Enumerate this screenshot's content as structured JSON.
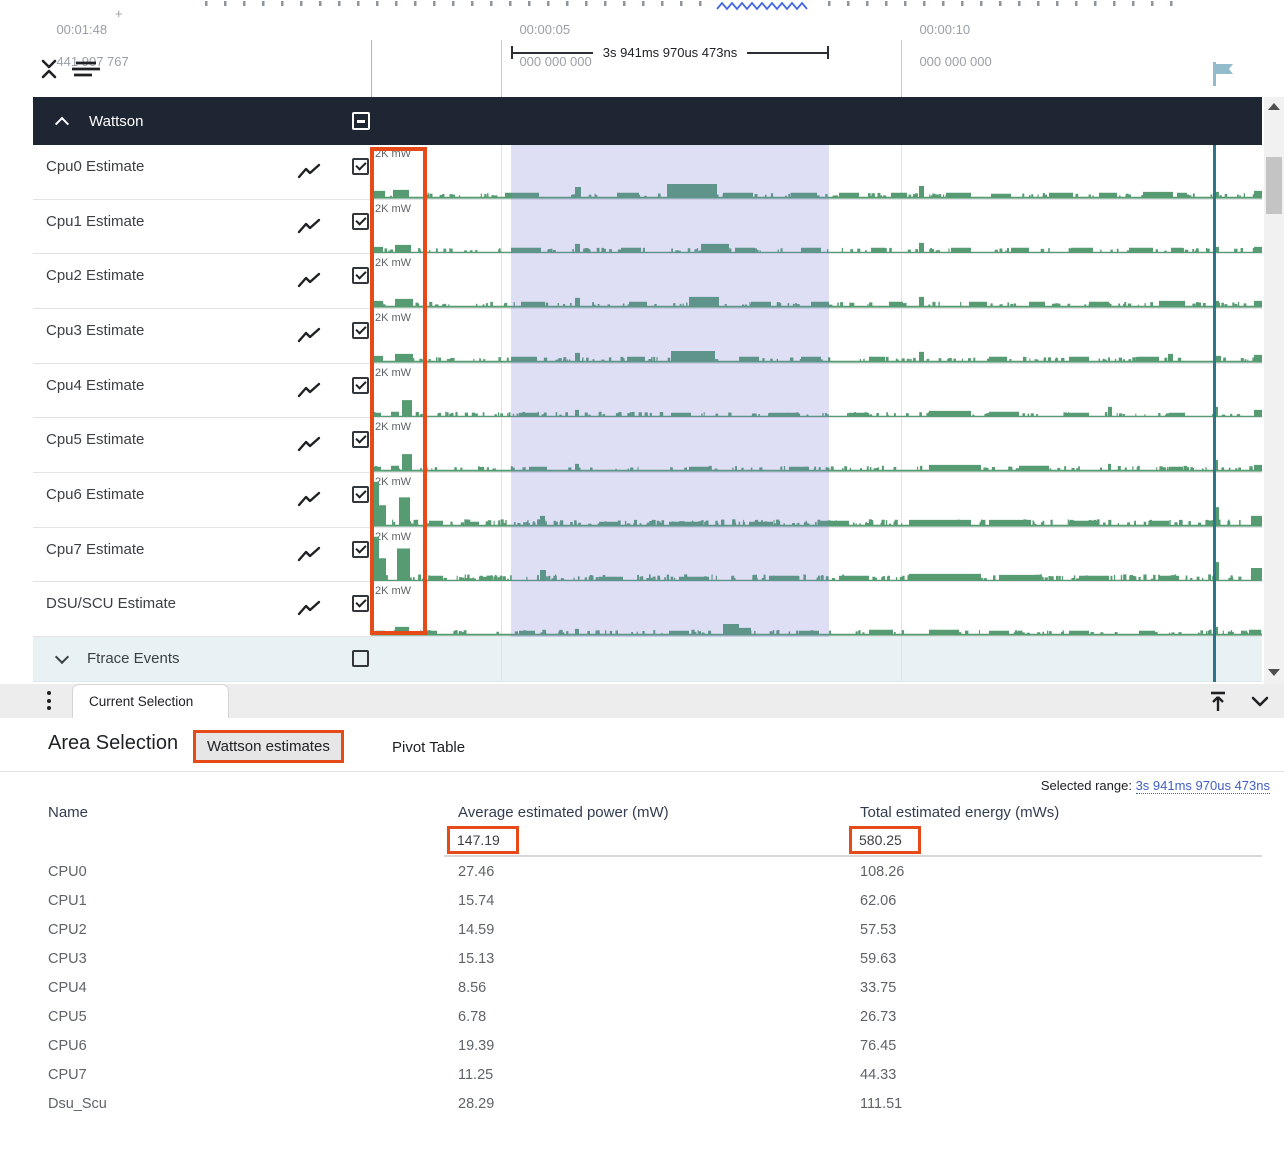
{
  "colors": {
    "accent_orange": "#e64a19",
    "chart_green": "#569b72",
    "cursor_teal": "#2b7689",
    "selection_lavender": "rgba(122,129,214,0.25)",
    "group_header_bg": "#1e2633",
    "link_blue": "#4260c4",
    "ftrace_row_bg": "#e8f2f4"
  },
  "ruler": {
    "start_time": {
      "line1": "00:01:48",
      "plus": "+",
      "line2": "441 907 767"
    },
    "tick_5s": {
      "line1": "00:00:05",
      "line2": "000 000 000"
    },
    "tick_10s": {
      "line1": "00:00:10",
      "line2": "000 000 000"
    },
    "selection_duration": "3s 941ms 970us 473ns"
  },
  "timeline": {
    "group": {
      "label": "Wattson",
      "checkbox": "indeterminate"
    },
    "unit_label": "2K mW",
    "tracks": [
      {
        "label": "Cpu0 Estimate",
        "checked": true,
        "bumps": [
          [
            0,
            14,
            6
          ],
          [
            22,
            16,
            7
          ],
          [
            134,
            34,
            4
          ],
          [
            204,
            6,
            10
          ],
          [
            246,
            22,
            4
          ],
          [
            296,
            50,
            13
          ],
          [
            352,
            30,
            4
          ],
          [
            420,
            26,
            4
          ],
          [
            468,
            20,
            4
          ],
          [
            520,
            16,
            4
          ],
          [
            548,
            5,
            11
          ],
          [
            575,
            25,
            4
          ],
          [
            620,
            20,
            3
          ],
          [
            678,
            24,
            4
          ],
          [
            728,
            18,
            4
          ],
          [
            772,
            30,
            5
          ],
          [
            806,
            10,
            4
          ],
          [
            842,
            6,
            5
          ],
          [
            883,
            8,
            6
          ]
        ]
      },
      {
        "label": "Cpu1 Estimate",
        "checked": true,
        "bumps": [
          [
            0,
            12,
            5
          ],
          [
            24,
            16,
            7
          ],
          [
            140,
            30,
            4
          ],
          [
            204,
            5,
            8
          ],
          [
            250,
            20,
            4
          ],
          [
            330,
            28,
            8
          ],
          [
            364,
            20,
            4
          ],
          [
            430,
            20,
            4
          ],
          [
            500,
            14,
            4
          ],
          [
            548,
            5,
            9
          ],
          [
            580,
            20,
            4
          ],
          [
            640,
            18,
            4
          ],
          [
            700,
            22,
            4
          ],
          [
            758,
            24,
            4
          ],
          [
            800,
            12,
            4
          ],
          [
            842,
            6,
            5
          ],
          [
            883,
            8,
            5
          ]
        ]
      },
      {
        "label": "Cpu2 Estimate",
        "checked": true,
        "bumps": [
          [
            0,
            12,
            5
          ],
          [
            24,
            18,
            7
          ],
          [
            150,
            24,
            4
          ],
          [
            204,
            5,
            8
          ],
          [
            258,
            18,
            4
          ],
          [
            318,
            30,
            9
          ],
          [
            380,
            20,
            4
          ],
          [
            440,
            18,
            4
          ],
          [
            518,
            14,
            4
          ],
          [
            548,
            5,
            9
          ],
          [
            598,
            18,
            4
          ],
          [
            658,
            16,
            4
          ],
          [
            718,
            20,
            4
          ],
          [
            788,
            26,
            5
          ],
          [
            842,
            6,
            5
          ],
          [
            883,
            8,
            5
          ]
        ]
      },
      {
        "label": "Cpu3 Estimate",
        "checked": true,
        "bumps": [
          [
            0,
            12,
            5
          ],
          [
            24,
            18,
            7
          ],
          [
            140,
            26,
            4
          ],
          [
            204,
            5,
            8
          ],
          [
            256,
            18,
            4
          ],
          [
            300,
            44,
            10
          ],
          [
            368,
            20,
            4
          ],
          [
            430,
            20,
            4
          ],
          [
            498,
            16,
            4
          ],
          [
            548,
            5,
            9
          ],
          [
            618,
            18,
            4
          ],
          [
            698,
            20,
            4
          ],
          [
            766,
            22,
            4
          ],
          [
            797,
            5,
            7
          ],
          [
            842,
            8,
            5
          ],
          [
            883,
            8,
            6
          ]
        ]
      },
      {
        "label": "Cpu4 Estimate",
        "checked": true,
        "bumps": [
          [
            0,
            10,
            3
          ],
          [
            20,
            8,
            4
          ],
          [
            31,
            10,
            16
          ],
          [
            148,
            20,
            3
          ],
          [
            204,
            4,
            6
          ],
          [
            300,
            20,
            3
          ],
          [
            398,
            28,
            3
          ],
          [
            478,
            20,
            3
          ],
          [
            558,
            42,
            5
          ],
          [
            618,
            30,
            4
          ],
          [
            698,
            20,
            3
          ],
          [
            737,
            4,
            9
          ],
          [
            798,
            16,
            3
          ],
          [
            842,
            5,
            9
          ],
          [
            883,
            8,
            6
          ]
        ]
      },
      {
        "label": "Cpu5 Estimate",
        "checked": true,
        "bumps": [
          [
            0,
            10,
            3
          ],
          [
            20,
            8,
            4
          ],
          [
            31,
            10,
            16
          ],
          [
            158,
            18,
            3
          ],
          [
            204,
            4,
            6
          ],
          [
            318,
            20,
            3
          ],
          [
            418,
            20,
            3
          ],
          [
            558,
            52,
            5
          ],
          [
            648,
            30,
            4
          ],
          [
            737,
            3,
            6
          ],
          [
            798,
            14,
            3
          ],
          [
            842,
            5,
            10
          ],
          [
            883,
            8,
            5
          ]
        ]
      },
      {
        "label": "Cpu6 Estimate",
        "checked": true,
        "bumps": [
          [
            0,
            8,
            44
          ],
          [
            8,
            7,
            20
          ],
          [
            28,
            11,
            28
          ],
          [
            58,
            14,
            4
          ],
          [
            98,
            10,
            3
          ],
          [
            169,
            5,
            9
          ],
          [
            228,
            20,
            3
          ],
          [
            298,
            30,
            3
          ],
          [
            378,
            24,
            3
          ],
          [
            448,
            30,
            4
          ],
          [
            538,
            62,
            5
          ],
          [
            618,
            42,
            5
          ],
          [
            698,
            30,
            4
          ],
          [
            778,
            20,
            4
          ],
          [
            842,
            6,
            18
          ],
          [
            880,
            11,
            9
          ]
        ]
      },
      {
        "label": "Cpu7 Estimate",
        "checked": true,
        "bumps": [
          [
            0,
            8,
            44
          ],
          [
            8,
            7,
            22
          ],
          [
            26,
            13,
            32
          ],
          [
            58,
            14,
            4
          ],
          [
            108,
            10,
            3
          ],
          [
            169,
            6,
            10
          ],
          [
            228,
            24,
            3
          ],
          [
            308,
            30,
            3
          ],
          [
            398,
            30,
            4
          ],
          [
            468,
            30,
            4
          ],
          [
            538,
            72,
            6
          ],
          [
            628,
            42,
            5
          ],
          [
            708,
            30,
            4
          ],
          [
            788,
            20,
            4
          ],
          [
            842,
            6,
            18
          ],
          [
            880,
            11,
            12
          ]
        ]
      },
      {
        "label": "DSU/SCU Estimate",
        "checked": true,
        "bumps": [
          [
            4,
            10,
            3
          ],
          [
            24,
            14,
            7
          ],
          [
            58,
            8,
            3
          ],
          [
            148,
            16,
            3
          ],
          [
            204,
            4,
            5
          ],
          [
            298,
            20,
            3
          ],
          [
            352,
            16,
            10
          ],
          [
            368,
            12,
            6
          ],
          [
            428,
            20,
            3
          ],
          [
            498,
            24,
            4
          ],
          [
            558,
            30,
            4
          ],
          [
            618,
            20,
            3
          ],
          [
            698,
            20,
            3
          ],
          [
            768,
            16,
            3
          ],
          [
            842,
            5,
            7
          ],
          [
            878,
            12,
            4
          ]
        ]
      }
    ],
    "ftrace": {
      "label": "Ftrace Events",
      "checked": false
    }
  },
  "tabbar": {
    "active_tab": "Current Selection"
  },
  "details": {
    "title": "Area Selection",
    "tabs": [
      {
        "label": "Wattson estimates",
        "active": true,
        "annotated": true
      },
      {
        "label": "Pivot Table",
        "active": false
      }
    ],
    "selected_range": {
      "label": "Selected range: ",
      "value": "3s 941ms 970us 473ns"
    },
    "table": {
      "columns": [
        "Name",
        "Average estimated power (mW)",
        "Total estimated energy (mWs)"
      ],
      "totals": {
        "avg_power": "147.19",
        "total_energy": "580.25"
      },
      "rows": [
        {
          "name": "CPU0",
          "avg_power": "27.46",
          "total_energy": "108.26"
        },
        {
          "name": "CPU1",
          "avg_power": "15.74",
          "total_energy": "62.06"
        },
        {
          "name": "CPU2",
          "avg_power": "14.59",
          "total_energy": "57.53"
        },
        {
          "name": "CPU3",
          "avg_power": "15.13",
          "total_energy": "59.63"
        },
        {
          "name": "CPU4",
          "avg_power": "8.56",
          "total_energy": "33.75"
        },
        {
          "name": "CPU5",
          "avg_power": "6.78",
          "total_energy": "26.73"
        },
        {
          "name": "CPU6",
          "avg_power": "19.39",
          "total_energy": "76.45"
        },
        {
          "name": "CPU7",
          "avg_power": "11.25",
          "total_energy": "44.33"
        },
        {
          "name": "Dsu_Scu",
          "avg_power": "28.29",
          "total_energy": "111.51"
        }
      ]
    }
  }
}
